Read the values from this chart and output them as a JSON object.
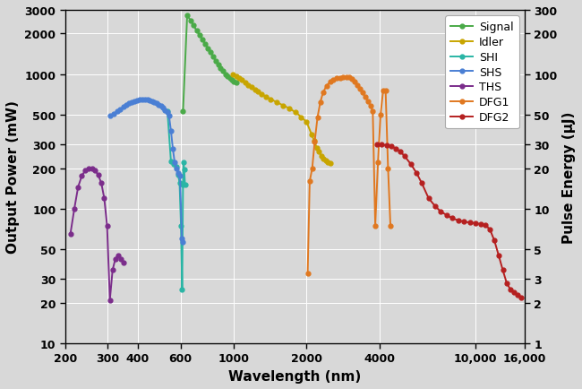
{
  "xlabel": "Wavelength (nm)",
  "ylabel_left": "Output Power (mW)",
  "ylabel_right": "Pulse Energy (μJ)",
  "background_color": "#d8d8d8",
  "grid_color": "#ffffff",
  "xlim": [
    200,
    16000
  ],
  "ylim_left": [
    10,
    3000
  ],
  "ylim_right": [
    1,
    300
  ],
  "xticks": [
    200,
    300,
    400,
    600,
    1000,
    2000,
    4000,
    10000,
    16000
  ],
  "xtick_labels": [
    "200",
    "300",
    "400",
    "600",
    "1000",
    "2000",
    "4000",
    "10,000",
    "16,000"
  ],
  "yticks_left": [
    10,
    20,
    30,
    50,
    100,
    200,
    300,
    500,
    1000,
    2000,
    3000
  ],
  "ytick_labels_left": [
    "10",
    "20",
    "30",
    "50",
    "100",
    "200",
    "300",
    "500",
    "1000",
    "2000",
    "3000"
  ],
  "yticks_right": [
    1,
    2,
    3,
    5,
    10,
    20,
    30,
    50,
    100,
    200,
    300
  ],
  "ytick_labels_right": [
    "1",
    "2",
    "3",
    "5",
    "10",
    "20",
    "30",
    "50",
    "100",
    "200",
    "300"
  ],
  "series": {
    "Signal": {
      "color": "#4aaa48",
      "x": [
        615,
        640,
        660,
        680,
        700,
        720,
        740,
        760,
        780,
        800,
        820,
        840,
        860,
        880,
        900,
        920,
        940,
        960,
        980,
        1000,
        1020
      ],
      "y": [
        530,
        2750,
        2500,
        2300,
        2100,
        1950,
        1800,
        1680,
        1560,
        1450,
        1350,
        1250,
        1180,
        1110,
        1050,
        1000,
        960,
        930,
        900,
        880,
        860
      ]
    },
    "Idler": {
      "color": "#c8a500",
      "x": [
        990,
        1020,
        1050,
        1080,
        1110,
        1140,
        1180,
        1220,
        1260,
        1300,
        1360,
        1420,
        1500,
        1600,
        1700,
        1800,
        1900,
        2000,
        2100,
        2150,
        2200,
        2250,
        2300,
        2350,
        2400,
        2450,
        2500
      ],
      "y": [
        1000,
        960,
        930,
        900,
        860,
        830,
        800,
        770,
        740,
        710,
        680,
        650,
        620,
        585,
        555,
        520,
        480,
        440,
        355,
        320,
        285,
        265,
        245,
        235,
        228,
        222,
        218
      ]
    },
    "SHI": {
      "color": "#2ab5a5",
      "x": [
        530,
        548,
        562,
        575,
        587,
        595,
        603,
        610,
        615,
        618,
        622,
        627
      ],
      "y": [
        530,
        225,
        215,
        205,
        180,
        155,
        75,
        25,
        150,
        220,
        195,
        150
      ]
    },
    "SHS": {
      "color": "#4a7fd4",
      "x": [
        308,
        318,
        328,
        338,
        348,
        358,
        368,
        378,
        388,
        398,
        408,
        418,
        428,
        438,
        448,
        458,
        468,
        478,
        488,
        498,
        508,
        518,
        528,
        538,
        548,
        558,
        568,
        578,
        588,
        598,
        608,
        614
      ],
      "y": [
        490,
        510,
        530,
        550,
        570,
        590,
        605,
        618,
        628,
        638,
        645,
        650,
        648,
        644,
        638,
        630,
        620,
        608,
        594,
        578,
        560,
        540,
        520,
        490,
        380,
        280,
        220,
        200,
        185,
        175,
        60,
        57
      ]
    },
    "THS": {
      "color": "#7b2d8b",
      "x": [
        210,
        218,
        226,
        234,
        242,
        250,
        258,
        266,
        274,
        282,
        290,
        298,
        306,
        314,
        322,
        330,
        340,
        350
      ],
      "y": [
        65,
        100,
        145,
        175,
        193,
        200,
        198,
        192,
        178,
        155,
        120,
        75,
        21,
        35,
        42,
        45,
        42,
        40
      ]
    },
    "DFG1": {
      "color": "#e07820",
      "x": [
        2020,
        2060,
        2110,
        2160,
        2220,
        2280,
        2340,
        2420,
        2500,
        2580,
        2660,
        2750,
        2840,
        2920,
        3000,
        3080,
        3160,
        3240,
        3320,
        3400,
        3490,
        3590,
        3680,
        3760,
        3850,
        3950,
        4050,
        4150,
        4250,
        4350,
        4450
      ],
      "y": [
        33,
        160,
        200,
        315,
        480,
        620,
        730,
        820,
        875,
        910,
        930,
        940,
        945,
        948,
        950,
        920,
        880,
        830,
        780,
        730,
        680,
        630,
        580,
        530,
        75,
        220,
        500,
        750,
        750,
        200,
        75
      ]
    },
    "DFG2": {
      "color": "#b52020",
      "x": [
        3900,
        4100,
        4300,
        4500,
        4700,
        4900,
        5100,
        5400,
        5700,
        6000,
        6400,
        6800,
        7200,
        7600,
        8000,
        8500,
        9000,
        9500,
        10000,
        10500,
        11000,
        11500,
        12000,
        12500,
        13000,
        13500,
        14000,
        14500,
        15000,
        15500
      ],
      "y": [
        300,
        300,
        295,
        290,
        280,
        265,
        245,
        215,
        185,
        155,
        120,
        105,
        95,
        90,
        85,
        82,
        80,
        79,
        78,
        77,
        76,
        70,
        58,
        45,
        35,
        28,
        25,
        24,
        23,
        22
      ]
    }
  }
}
